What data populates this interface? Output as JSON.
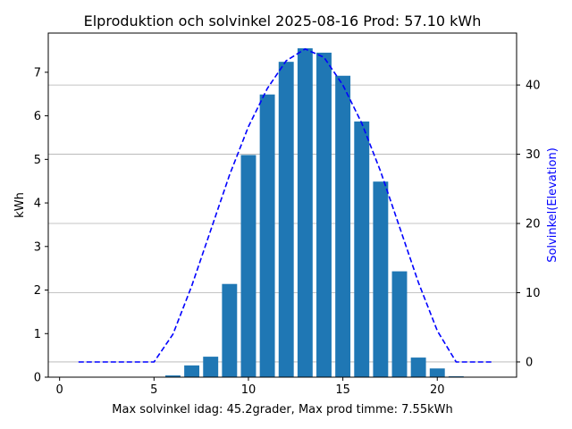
{
  "chart_data": {
    "type": "bar",
    "title": "Elproduktion och solvinkel 2025-08-16 Prod: 57.10 kWh",
    "xlabel": "Max solvinkel idag: 45.2grader, Max prod timme: 7.55kWh",
    "ylabel": "kWh",
    "y2label": "Solvinkel(Elevation)",
    "xlim": [
      -0.6,
      24.2
    ],
    "ylim": [
      0,
      7.9
    ],
    "y2lim": [
      -2.2,
      47.5
    ],
    "xticks": [
      0,
      5,
      10,
      15,
      20
    ],
    "yticks": [
      0,
      1,
      2,
      3,
      4,
      5,
      6,
      7
    ],
    "y2ticks": [
      0,
      10,
      20,
      30,
      40
    ],
    "grid": "horizontal lines at right-axis ticks",
    "series": [
      {
        "axis": "left",
        "kind": "bar",
        "color": "#1f77b4",
        "x": [
          6,
          7,
          8,
          9,
          10,
          11,
          12,
          13,
          14,
          15,
          16,
          17,
          18,
          19,
          20,
          21
        ],
        "values": [
          0.04,
          0.27,
          0.47,
          2.14,
          5.1,
          6.49,
          7.24,
          7.55,
          7.45,
          6.92,
          5.87,
          4.49,
          2.43,
          0.45,
          0.2,
          0.02
        ]
      },
      {
        "axis": "right",
        "kind": "line",
        "style": "dashed",
        "color": "#0000ff",
        "x": [
          1,
          2,
          3,
          4,
          5,
          6,
          7,
          8,
          9,
          10,
          11,
          12,
          13,
          14,
          15,
          16,
          17,
          18,
          19,
          20,
          21,
          22,
          23
        ],
        "values": [
          0,
          0,
          0,
          0,
          0,
          4,
          11,
          19,
          27,
          34,
          39.5,
          43.5,
          45.2,
          44,
          40,
          34.5,
          27.5,
          19.5,
          11.5,
          4.5,
          0,
          0,
          0
        ]
      }
    ]
  }
}
